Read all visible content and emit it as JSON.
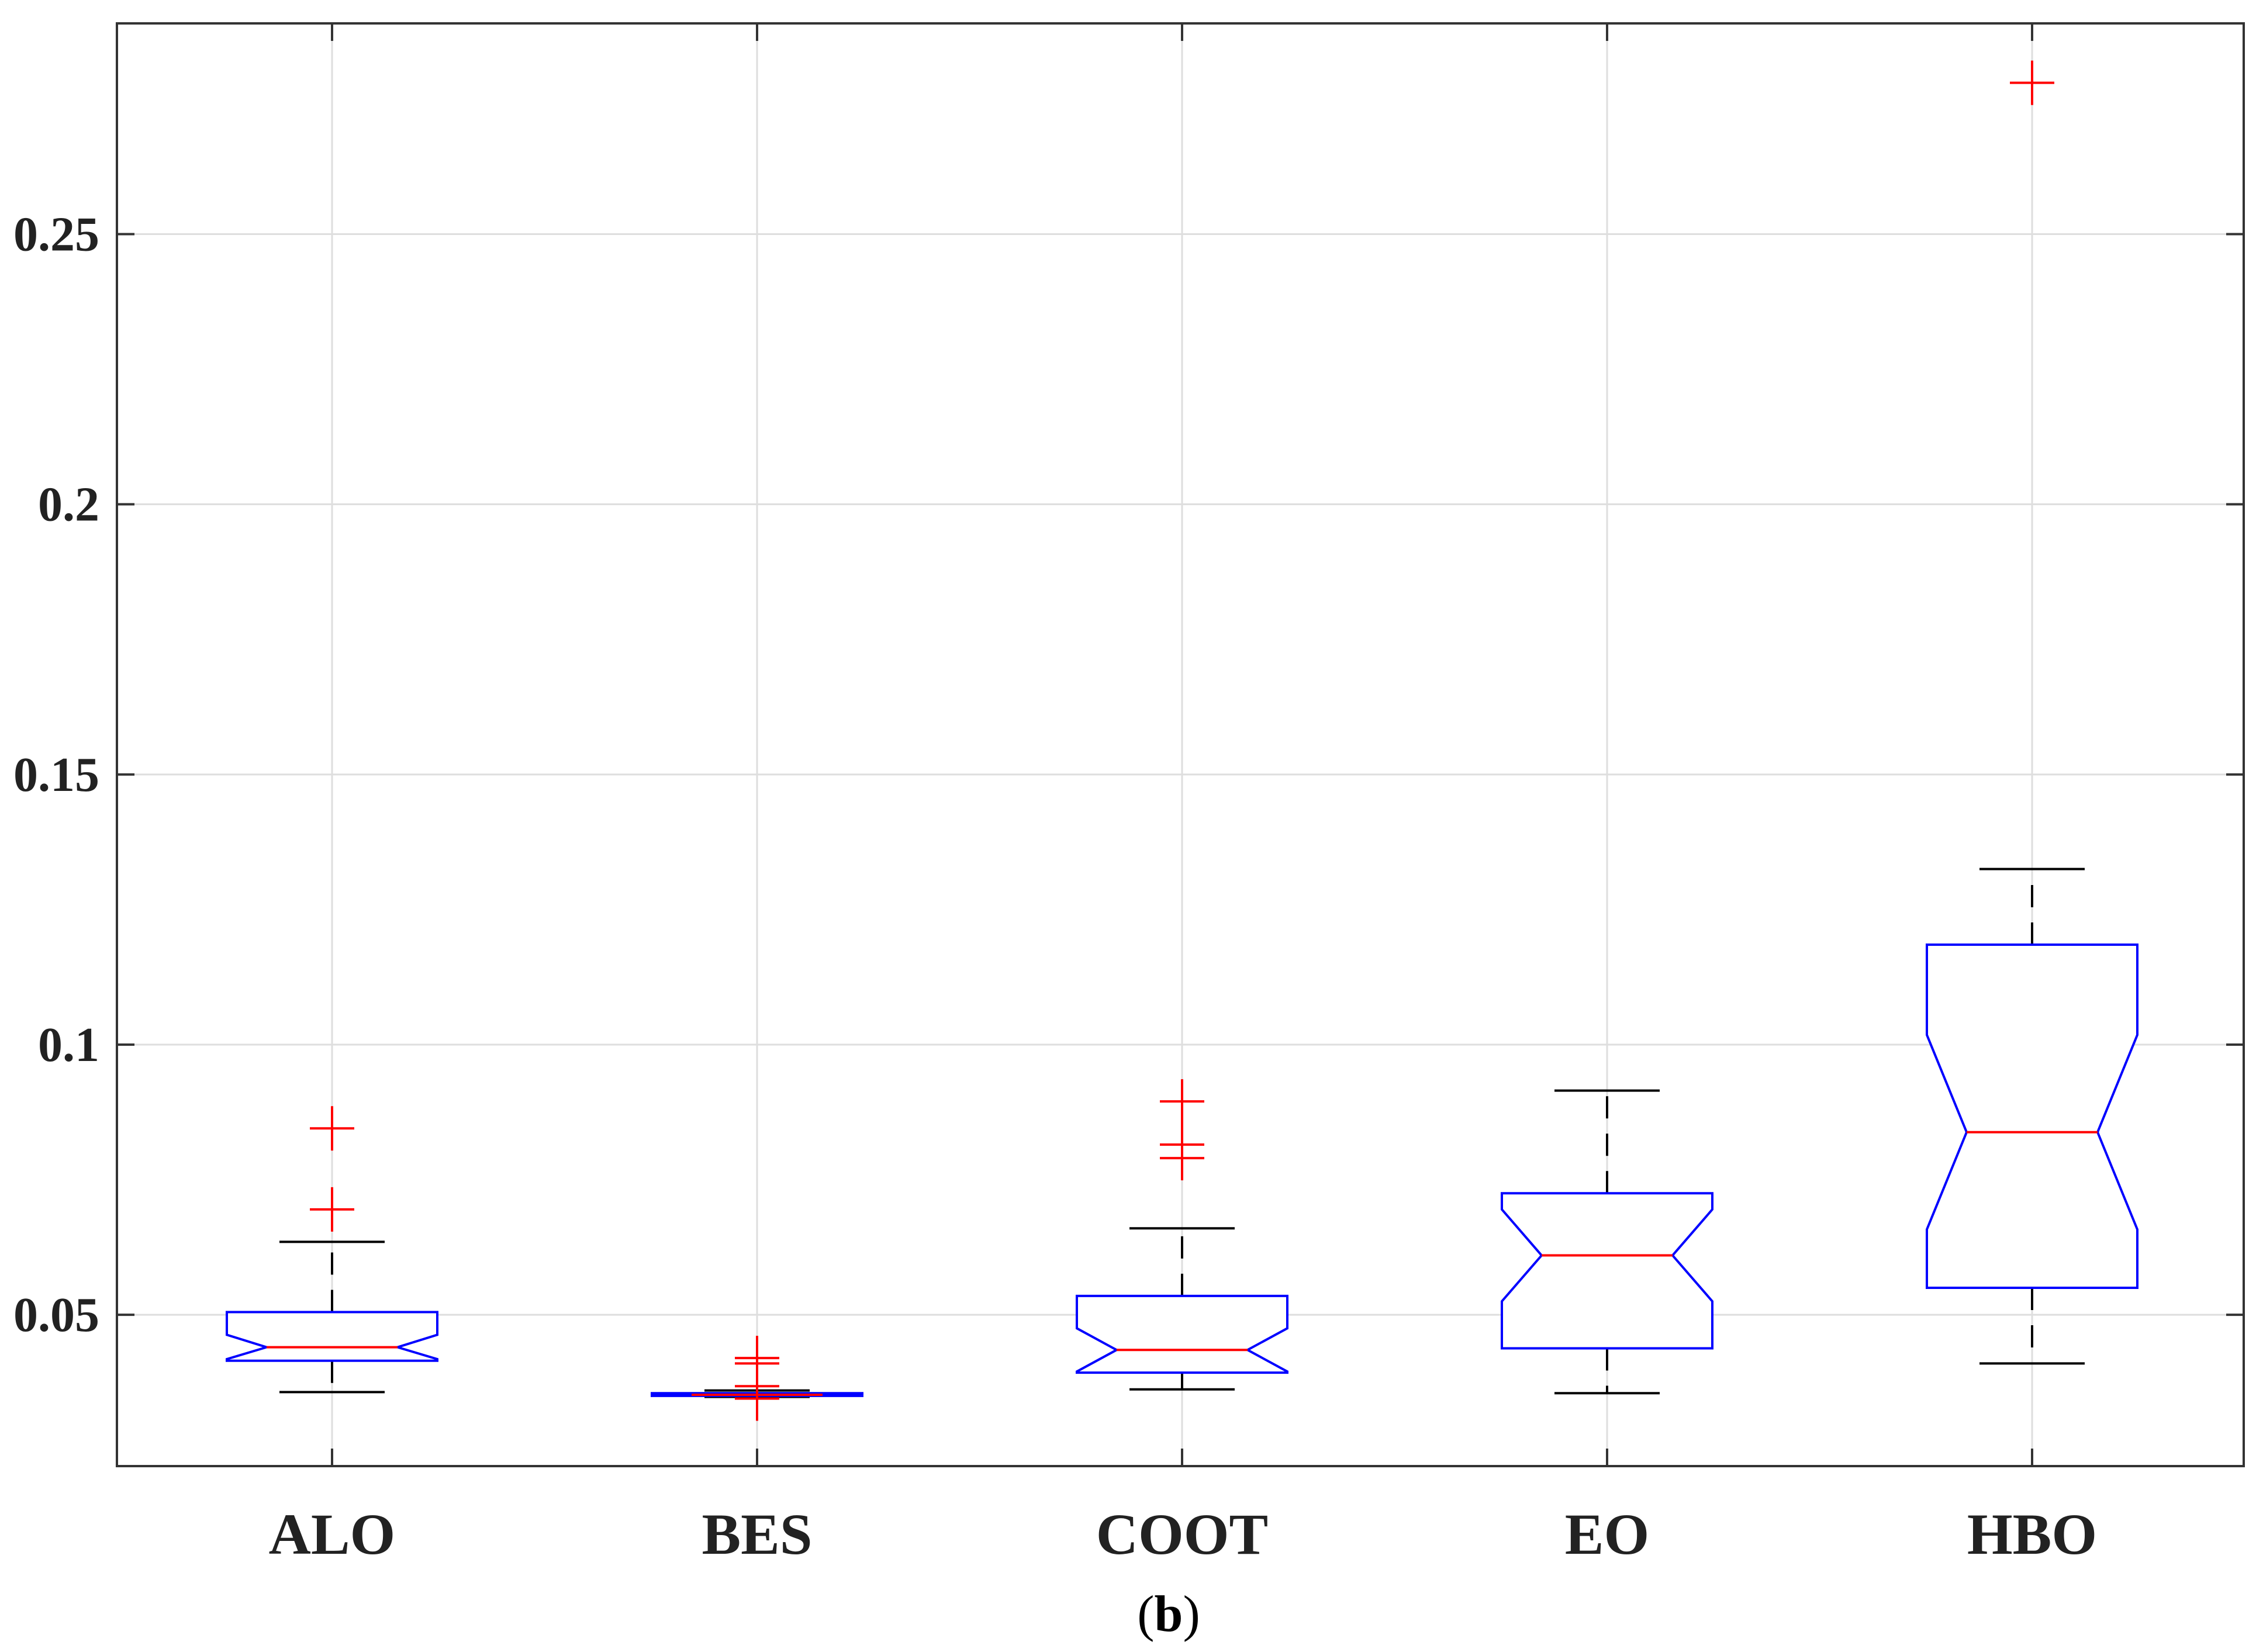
{
  "chart_data": {
    "type": "boxplot",
    "title": "",
    "xlabel": "",
    "ylabel": "",
    "grid": true,
    "notched": true,
    "ylim": [
      0.022,
      0.289
    ],
    "yticks": [
      0.05,
      0.1,
      0.15,
      0.2,
      0.25
    ],
    "ytick_labels": [
      "0.05",
      "0.1",
      "0.15",
      "0.2",
      "0.25"
    ],
    "categories": [
      "ALO",
      "BES",
      "COOT",
      "EO",
      "HBO"
    ],
    "boxes": [
      {
        "name": "ALO",
        "whisker_low": 0.0357,
        "q1": 0.0415,
        "median": 0.044,
        "q3": 0.0505,
        "whisker_high": 0.0635,
        "notch_low": 0.0418,
        "notch_high": 0.0463,
        "outliers": [
          0.0695,
          0.0845
        ]
      },
      {
        "name": "BES",
        "whisker_low": 0.0348,
        "q1": 0.035,
        "median": 0.0352,
        "q3": 0.0355,
        "whisker_high": 0.036,
        "notch_low": 0.0351,
        "notch_high": 0.0353,
        "outliers": [
          0.0345,
          0.0368,
          0.041,
          0.042
        ]
      },
      {
        "name": "COOT",
        "whisker_low": 0.0362,
        "q1": 0.0393,
        "median": 0.0435,
        "q3": 0.0535,
        "whisker_high": 0.066,
        "notch_low": 0.0395,
        "notch_high": 0.0475,
        "outliers": [
          0.079,
          0.0815,
          0.0895
        ]
      },
      {
        "name": "EO",
        "whisker_low": 0.0355,
        "q1": 0.0438,
        "median": 0.061,
        "q3": 0.0725,
        "whisker_high": 0.0915,
        "notch_low": 0.0525,
        "notch_high": 0.0695,
        "outliers": []
      },
      {
        "name": "HBO",
        "whisker_low": 0.041,
        "q1": 0.055,
        "median": 0.0838,
        "q3": 0.1185,
        "whisker_high": 0.1325,
        "notch_low": 0.0658,
        "notch_high": 0.1018,
        "outliers": [
          0.278
        ]
      }
    ],
    "colors": {
      "box": "#0000ff",
      "median": "#ff0000",
      "outlier": "#ff0000",
      "whisker": "#000000",
      "grid": "#dedede",
      "axes": "#333333"
    }
  },
  "caption": {
    "open": "(",
    "letter": "b",
    "close": ")"
  }
}
